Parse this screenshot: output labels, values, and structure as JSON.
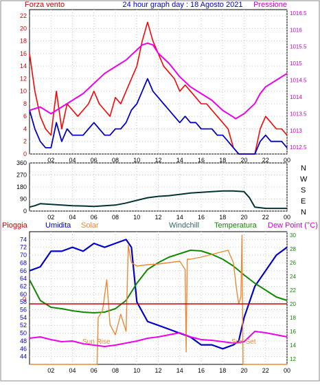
{
  "header": {
    "left_label": "Forza vento",
    "title": "24 hour graph day : 18 Agosto 2021",
    "right_label": "Pressione"
  },
  "compass_labels": [
    "N",
    "W",
    "S",
    "E",
    "N"
  ],
  "legend": {
    "rain": "Pioggia",
    "humidity": "Umidita",
    "solar": "Solar",
    "windchill": "Windchill",
    "temperature": "Temperatura",
    "dewpoint": "Dew Point (°C)"
  },
  "annotations": {
    "sunrise": "Sun Rise",
    "sunset": "Sun Set"
  },
  "colors": {
    "wind_gust": "#ff0000",
    "wind_avg": "#0000cc",
    "pressure": "#ee00ee",
    "direction": "#003333",
    "humidity": "#0000cc",
    "temperature": "#118800",
    "solar": "#ee8833",
    "dewpoint": "#ee00ee",
    "rain": "#cc0000",
    "axis_wind": "#cc0000",
    "axis_pressure": "#cc00cc",
    "axis_humidity": "#0000cc",
    "axis_temp": "#118800"
  },
  "chart_data": [
    {
      "type": "line",
      "x_ticks": [
        "02",
        "04",
        "06",
        "08",
        "10",
        "12",
        "14",
        "16",
        "18",
        "20",
        "22",
        "00"
      ],
      "y_left": {
        "range": [
          0,
          23
        ],
        "ticks": [
          0,
          2,
          4,
          6,
          8,
          10,
          12,
          14,
          16,
          18,
          20,
          22
        ]
      },
      "y_right": {
        "range": [
          1012.3,
          1016.6
        ],
        "ticks": [
          "1012.5",
          "1013",
          "1013.5",
          "1014",
          "1014.5",
          "1015",
          "1015.5",
          "1016",
          "1016.5"
        ]
      },
      "grid": true,
      "series": [
        {
          "name": "Forza vento",
          "axis": "left",
          "x": [
            0,
            0.5,
            1,
            1.5,
            2,
            2.5,
            3,
            3.5,
            4,
            4.5,
            5,
            5.5,
            6,
            6.5,
            7,
            7.5,
            8,
            8.5,
            9,
            9.5,
            10,
            10.5,
            11,
            11.5,
            12,
            12.5,
            13,
            13.5,
            14,
            14.5,
            15,
            15.5,
            16,
            16.5,
            17,
            17.5,
            18,
            18.5,
            19,
            19.5,
            20,
            20.5,
            21,
            21.5,
            22,
            22.5,
            23,
            23.5,
            24
          ],
          "values": [
            16,
            10,
            6,
            4,
            3,
            10,
            4,
            8,
            7,
            6,
            7,
            8,
            10,
            8,
            7,
            6,
            9,
            8,
            10,
            12,
            14,
            18,
            21,
            18,
            16,
            14,
            13,
            12,
            10,
            11,
            10,
            9,
            8,
            8,
            7,
            6,
            5,
            4,
            1,
            0,
            0,
            0,
            0,
            4,
            6,
            5,
            4,
            4,
            3
          ]
        },
        {
          "name": "Umidita",
          "axis": "left",
          "x": [
            0,
            0.5,
            1,
            1.5,
            2,
            2.5,
            3,
            3.5,
            4,
            4.5,
            5,
            5.5,
            6,
            6.5,
            7,
            7.5,
            8,
            8.5,
            9,
            9.5,
            10,
            10.5,
            11,
            11.5,
            12,
            12.5,
            13,
            13.5,
            14,
            14.5,
            15,
            15.5,
            16,
            16.5,
            17,
            17.5,
            18,
            18.5,
            19,
            19.5,
            20,
            20.5,
            21,
            21.5,
            22,
            22.5,
            23,
            23.5,
            24
          ],
          "values": [
            7,
            4,
            2,
            1,
            1,
            5,
            2,
            4,
            3,
            3,
            3,
            4,
            5,
            4,
            3,
            3,
            4,
            4,
            5,
            7,
            8,
            10,
            12,
            10,
            9,
            8,
            7,
            6,
            5,
            6,
            5,
            5,
            4,
            4,
            4,
            3,
            3,
            2,
            1,
            0,
            0,
            0,
            0,
            2,
            3,
            2,
            2,
            2,
            1
          ]
        },
        {
          "name": "Pressione",
          "axis": "right",
          "x": [
            0,
            1,
            2,
            3,
            4,
            5,
            6,
            7,
            8,
            9,
            10,
            10.5,
            11,
            11.5,
            12,
            13,
            14,
            15,
            16,
            17,
            18,
            19,
            19.2,
            20,
            21,
            21.5,
            22,
            23,
            24
          ],
          "values": [
            1013.6,
            1013.7,
            1013.5,
            1013.7,
            1013.9,
            1014.1,
            1014.4,
            1014.7,
            1014.9,
            1015.1,
            1015.4,
            1015.55,
            1015.6,
            1015.55,
            1015.3,
            1015.0,
            1014.6,
            1014.3,
            1014.1,
            1013.9,
            1013.6,
            1013.4,
            1013.35,
            1013.5,
            1013.8,
            1014.1,
            1014.3,
            1014.5,
            1014.7
          ]
        }
      ]
    },
    {
      "type": "line",
      "x_ticks": [
        "02",
        "04",
        "06",
        "08",
        "10",
        "12",
        "14",
        "16",
        "18",
        "20",
        "22",
        "00"
      ],
      "y_left": {
        "range": [
          0,
          360
        ],
        "ticks": [
          0,
          90,
          180,
          270,
          360
        ]
      },
      "grid": true,
      "series": [
        {
          "axis": "left",
          "x": [
            0,
            0.5,
            1,
            2,
            3,
            4,
            5,
            6,
            7,
            8,
            9,
            10,
            11,
            12,
            13,
            14,
            15,
            16,
            17,
            18,
            19,
            20,
            20.5,
            21,
            22,
            23,
            24
          ],
          "values": [
            30,
            40,
            55,
            50,
            45,
            40,
            38,
            35,
            40,
            45,
            60,
            80,
            100,
            110,
            115,
            125,
            135,
            140,
            145,
            150,
            150,
            145,
            100,
            30,
            20,
            20,
            20
          ]
        }
      ]
    },
    {
      "type": "line",
      "x_ticks": [
        "02",
        "04",
        "06",
        "08",
        "10",
        "12",
        "14",
        "16",
        "18",
        "20",
        "22",
        "00"
      ],
      "y_left": {
        "range": [
          42,
          76
        ],
        "ticks": [
          44,
          46,
          48,
          50,
          52,
          54,
          56,
          58,
          60,
          62,
          64,
          66,
          68,
          70,
          72,
          74
        ]
      },
      "y_right": {
        "range": [
          11.2,
          30.5
        ],
        "ticks": [
          12,
          14,
          16,
          18,
          20,
          22,
          24,
          26,
          28,
          30
        ]
      },
      "grid": true,
      "series": [
        {
          "name": "Umidita",
          "axis": "left",
          "x": [
            0,
            1,
            2,
            3,
            4,
            5,
            6,
            7,
            8,
            9,
            9.5,
            10,
            11,
            12,
            13,
            14,
            15,
            16,
            17,
            18,
            19,
            19.5,
            20,
            20.5,
            21,
            22,
            23,
            24
          ],
          "values": [
            66,
            67,
            71,
            71,
            72,
            71,
            73,
            72,
            73,
            74,
            72,
            58,
            53,
            52,
            51,
            50,
            49,
            47,
            47,
            46,
            47,
            48,
            54,
            58,
            62,
            66,
            70,
            72
          ]
        },
        {
          "name": "Temperatura",
          "axis": "right",
          "x": [
            0,
            0.5,
            1,
            2,
            3,
            4,
            5,
            6,
            7,
            8,
            9,
            10,
            11,
            12,
            13,
            14,
            15,
            16,
            17,
            18,
            19,
            20,
            21,
            22,
            23,
            24
          ],
          "values": [
            23.5,
            22.0,
            20.5,
            19.5,
            19.3,
            19.0,
            18.8,
            18.7,
            18.8,
            19.3,
            20.5,
            23.0,
            25.0,
            26.0,
            26.8,
            27.3,
            27.8,
            27.7,
            27.2,
            26.5,
            25.5,
            24.2,
            23.0,
            22.0,
            21.0,
            20.5
          ]
        },
        {
          "name": "Solar",
          "axis": "right",
          "x": [
            0,
            6.3,
            6.4,
            6.8,
            7.2,
            7.5,
            8.0,
            8.5,
            9.0,
            9.2,
            9.5,
            10,
            11,
            12,
            13,
            14,
            14.5,
            14.6,
            14.7,
            15,
            16,
            17,
            18,
            18.5,
            19,
            19.3,
            19.5,
            19.7,
            19.8,
            19.9,
            20.0,
            24
          ],
          "values": [
            11.2,
            11.2,
            18.0,
            19.0,
            23.5,
            17.0,
            15.5,
            18.5,
            16.0,
            28.5,
            26.0,
            25.5,
            25.7,
            25.8,
            26.0,
            26.2,
            25.0,
            13.0,
            26.5,
            26.5,
            26.8,
            27.2,
            27.6,
            27.8,
            26.0,
            22.0,
            20.0,
            21.0,
            30.0,
            11.2,
            11.2,
            11.2
          ]
        },
        {
          "name": "Dew Point (°C)",
          "axis": "right",
          "x": [
            0,
            1,
            2,
            3,
            4,
            5,
            6,
            7,
            8,
            9,
            10,
            11,
            12,
            13,
            14,
            15,
            16,
            17,
            18,
            19,
            20,
            21,
            22,
            23,
            24
          ],
          "values": [
            15.0,
            15.2,
            14.8,
            14.5,
            14.6,
            14.2,
            14.0,
            13.8,
            14.0,
            14.3,
            14.6,
            15.0,
            15.2,
            15.5,
            15.8,
            15.2,
            14.8,
            14.7,
            14.5,
            14.3,
            14.5,
            16.0,
            15.8,
            15.5,
            15.2
          ]
        },
        {
          "name": "Pioggia",
          "axis": "right",
          "x": [
            0,
            24
          ],
          "values": [
            20.0,
            20.0
          ]
        }
      ]
    }
  ]
}
